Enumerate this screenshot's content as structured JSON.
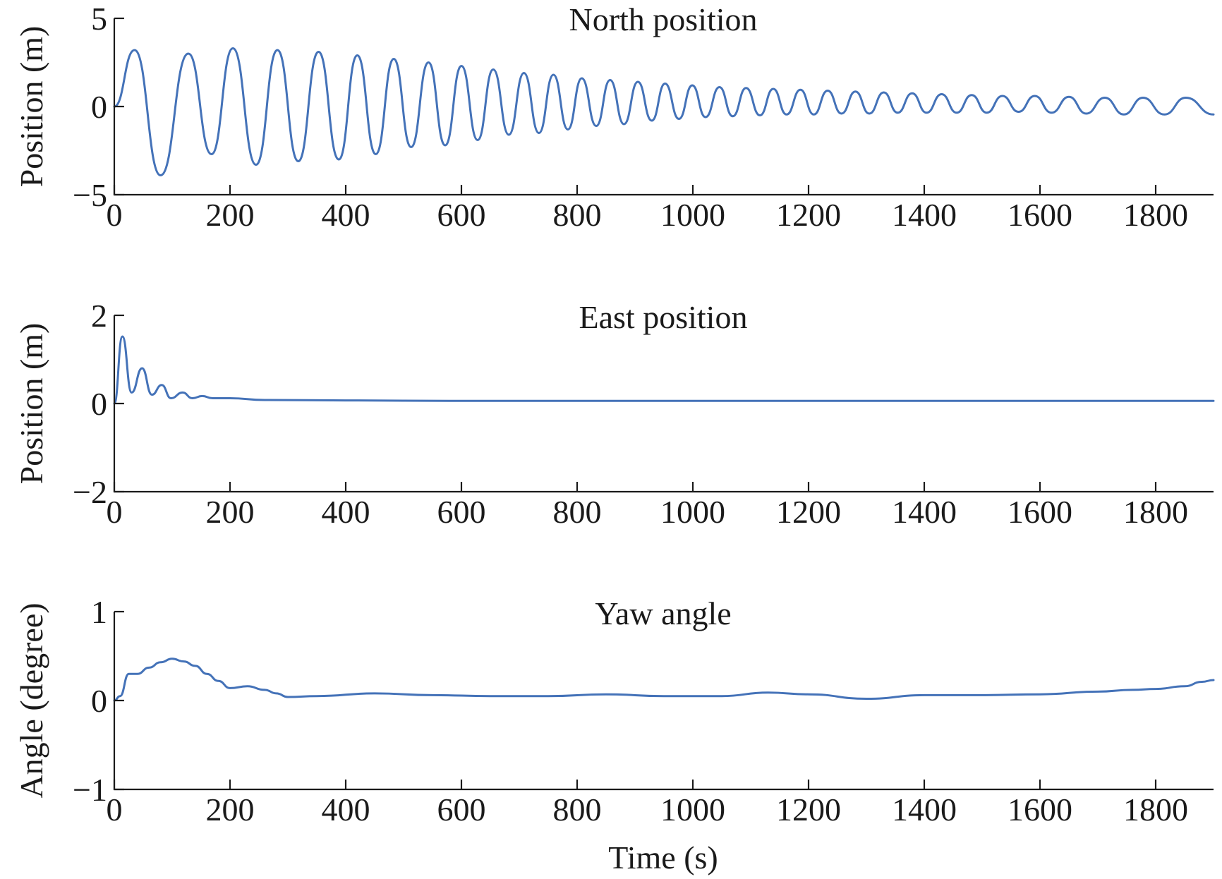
{
  "chart_data": [
    {
      "type": "line",
      "title": "North position",
      "xlabel": "",
      "ylabel": "Position (m)",
      "xlim": [
        0,
        1900
      ],
      "ylim": [
        -5,
        5
      ],
      "xticks": [
        "0",
        "200",
        "400",
        "600",
        "800",
        "1000",
        "1200",
        "1400",
        "1600",
        "1800"
      ],
      "yticks": [
        "5",
        "0",
        "−5"
      ],
      "series": [
        {
          "name": "North position",
          "color": "#4472b8",
          "x": [
            0,
            35,
            80,
            128,
            168,
            205,
            245,
            282,
            318,
            353,
            388,
            420,
            452,
            483,
            513,
            543,
            572,
            600,
            628,
            655,
            682,
            708,
            734,
            759,
            784,
            808,
            833,
            857,
            881,
            905,
            929,
            952,
            976,
            999,
            1022,
            1046,
            1069,
            1092,
            1116,
            1139,
            1162,
            1186,
            1209,
            1233,
            1257,
            1281,
            1305,
            1330,
            1354,
            1379,
            1404,
            1430,
            1456,
            1482,
            1508,
            1535,
            1563,
            1591,
            1620,
            1650,
            1680,
            1712,
            1745,
            1778,
            1815,
            1852,
            1900
          ],
          "y": [
            0,
            3.2,
            -3.9,
            3.0,
            -2.7,
            3.3,
            -3.3,
            3.2,
            -3.1,
            3.1,
            -3.0,
            2.9,
            -2.7,
            2.7,
            -2.3,
            2.5,
            -2.2,
            2.3,
            -1.9,
            2.1,
            -1.6,
            1.9,
            -1.5,
            1.8,
            -1.3,
            1.6,
            -1.1,
            1.5,
            -1.0,
            1.4,
            -0.8,
            1.3,
            -0.7,
            1.2,
            -0.6,
            1.1,
            -0.55,
            1.05,
            -0.5,
            1.0,
            -0.45,
            0.95,
            -0.45,
            0.9,
            -0.4,
            0.85,
            -0.4,
            0.8,
            -0.35,
            0.75,
            -0.35,
            0.7,
            -0.35,
            0.65,
            -0.35,
            0.6,
            -0.3,
            0.6,
            -0.35,
            0.55,
            -0.4,
            0.5,
            -0.45,
            0.5,
            -0.45,
            0.5,
            -0.45
          ]
        }
      ]
    },
    {
      "type": "line",
      "title": "East position",
      "xlabel": "",
      "ylabel": "Position (m)",
      "xlim": [
        0,
        1900
      ],
      "ylim": [
        -2,
        2
      ],
      "xticks": [
        "0",
        "200",
        "400",
        "600",
        "800",
        "1000",
        "1200",
        "1400",
        "1600",
        "1800"
      ],
      "yticks": [
        "2",
        "0",
        "−2"
      ],
      "series": [
        {
          "name": "East position",
          "color": "#4472b8",
          "x": [
            0,
            14,
            30,
            48,
            65,
            82,
            98,
            118,
            135,
            152,
            170,
            200,
            260,
            400,
            600,
            800,
            1000,
            1200,
            1400,
            1600,
            1800,
            1900
          ],
          "y": [
            0,
            1.52,
            0.25,
            0.8,
            0.2,
            0.42,
            0.12,
            0.25,
            0.12,
            0.17,
            0.12,
            0.12,
            0.08,
            0.07,
            0.06,
            0.06,
            0.06,
            0.06,
            0.06,
            0.06,
            0.06,
            0.06
          ]
        }
      ]
    },
    {
      "type": "line",
      "title": "Yaw angle",
      "xlabel": "Time (s)",
      "ylabel": "Angle (degree)",
      "xlim": [
        0,
        1900
      ],
      "ylim": [
        -1,
        1
      ],
      "xticks": [
        "0",
        "200",
        "400",
        "600",
        "800",
        "1000",
        "1200",
        "1400",
        "1600",
        "1800"
      ],
      "yticks": [
        "1",
        "0",
        "−1"
      ],
      "series": [
        {
          "name": "Yaw angle",
          "color": "#4472b8",
          "x": [
            0,
            10,
            25,
            40,
            60,
            80,
            100,
            120,
            140,
            160,
            180,
            200,
            230,
            260,
            280,
            300,
            350,
            450,
            550,
            650,
            750,
            850,
            950,
            1050,
            1130,
            1200,
            1300,
            1400,
            1500,
            1600,
            1700,
            1760,
            1800,
            1850,
            1880,
            1900
          ],
          "y": [
            0,
            0.05,
            0.3,
            0.3,
            0.37,
            0.43,
            0.47,
            0.44,
            0.39,
            0.3,
            0.22,
            0.14,
            0.16,
            0.12,
            0.08,
            0.04,
            0.05,
            0.08,
            0.06,
            0.05,
            0.05,
            0.07,
            0.05,
            0.05,
            0.09,
            0.07,
            0.02,
            0.06,
            0.06,
            0.07,
            0.1,
            0.12,
            0.13,
            0.16,
            0.21,
            0.23
          ]
        }
      ]
    }
  ]
}
